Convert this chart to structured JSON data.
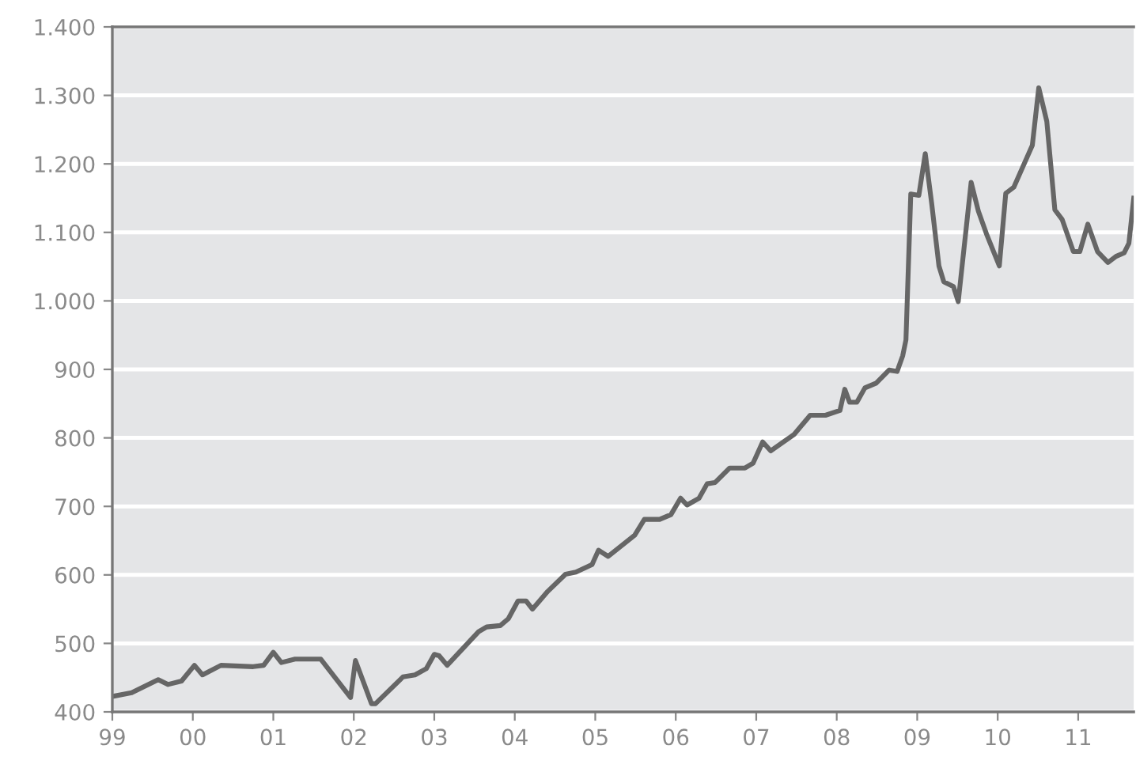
{
  "chart_data": {
    "type": "line",
    "x": [
      1999.02,
      1999.24,
      1999.57,
      1999.69,
      1999.86,
      2000.02,
      2000.12,
      2000.35,
      2000.75,
      2000.88,
      2001.0,
      2001.1,
      2001.27,
      2001.59,
      2001.96,
      2002.02,
      2002.22,
      2002.27,
      2002.61,
      2002.76,
      2002.9,
      2003.0,
      2003.06,
      2003.16,
      2003.55,
      2003.65,
      2003.82,
      2003.92,
      2004.04,
      2004.14,
      2004.22,
      2004.41,
      2004.63,
      2004.76,
      2004.96,
      2005.04,
      2005.16,
      2005.49,
      2005.61,
      2005.8,
      2005.94,
      2006.06,
      2006.14,
      2006.29,
      2006.39,
      2006.49,
      2006.67,
      2006.86,
      2006.96,
      2007.08,
      2007.18,
      2007.47,
      2007.67,
      2007.86,
      2008.04,
      2008.1,
      2008.16,
      2008.25,
      2008.35,
      2008.49,
      2008.65,
      2008.75,
      2008.82,
      2008.86,
      2008.92,
      2009.02,
      2009.1,
      2009.18,
      2009.27,
      2009.33,
      2009.45,
      2009.51,
      2009.67,
      2009.76,
      2009.86,
      2010.02,
      2010.1,
      2010.2,
      2010.43,
      2010.51,
      2010.61,
      2010.71,
      2010.8,
      2010.94,
      2011.02,
      2011.12,
      2011.24,
      2011.37,
      2011.47,
      2011.57,
      2011.63,
      2011.69
    ],
    "series": [
      {
        "color": "#666666",
        "values": [
          423,
          428,
          447,
          440,
          445,
          468,
          454,
          468,
          466,
          468,
          487,
          472,
          477,
          477,
          421,
          475,
          412,
          412,
          451,
          454,
          463,
          484,
          482,
          468,
          517,
          524,
          526,
          536,
          562,
          562,
          550,
          576,
          601,
          604,
          615,
          636,
          627,
          658,
          681,
          681,
          688,
          712,
          702,
          712,
          733,
          735,
          756,
          756,
          763,
          794,
          781,
          805,
          833,
          833,
          840,
          871,
          852,
          852,
          873,
          880,
          899,
          897,
          920,
          943,
          1156,
          1154,
          1215,
          1142,
          1051,
          1028,
          1021,
          999,
          1173,
          1131,
          1098,
          1051,
          1157,
          1166,
          1227,
          1311,
          1262,
          1133,
          1119,
          1072,
          1072,
          1112,
          1072,
          1056,
          1065,
          1070,
          1084,
          1150
        ]
      }
    ],
    "xlim": [
      1999,
      2011.69
    ],
    "xticks": [
      {
        "value": 1999,
        "label": "99"
      },
      {
        "value": 2000,
        "label": "00"
      },
      {
        "value": 2001,
        "label": "01"
      },
      {
        "value": 2002,
        "label": "02"
      },
      {
        "value": 2003,
        "label": "03"
      },
      {
        "value": 2004,
        "label": "04"
      },
      {
        "value": 2005,
        "label": "05"
      },
      {
        "value": 2006,
        "label": "06"
      },
      {
        "value": 2007,
        "label": "07"
      },
      {
        "value": 2008,
        "label": "08"
      },
      {
        "value": 2009,
        "label": "09"
      },
      {
        "value": 2010,
        "label": "10"
      },
      {
        "value": 2011,
        "label": "11"
      }
    ],
    "ylim": [
      400,
      1400
    ],
    "yticks": [
      {
        "value": 400,
        "label": "400"
      },
      {
        "value": 500,
        "label": "500"
      },
      {
        "value": 600,
        "label": "600"
      },
      {
        "value": 700,
        "label": "700"
      },
      {
        "value": 800,
        "label": "800"
      },
      {
        "value": 900,
        "label": "900"
      },
      {
        "value": 1000,
        "label": "1.000"
      },
      {
        "value": 1100,
        "label": "1.100"
      },
      {
        "value": 1200,
        "label": "1.200"
      },
      {
        "value": 1300,
        "label": "1.300"
      },
      {
        "value": 1400,
        "label": "1.400"
      }
    ],
    "grid": "y",
    "marker": "none",
    "line_style": "solid",
    "legend": false
  }
}
